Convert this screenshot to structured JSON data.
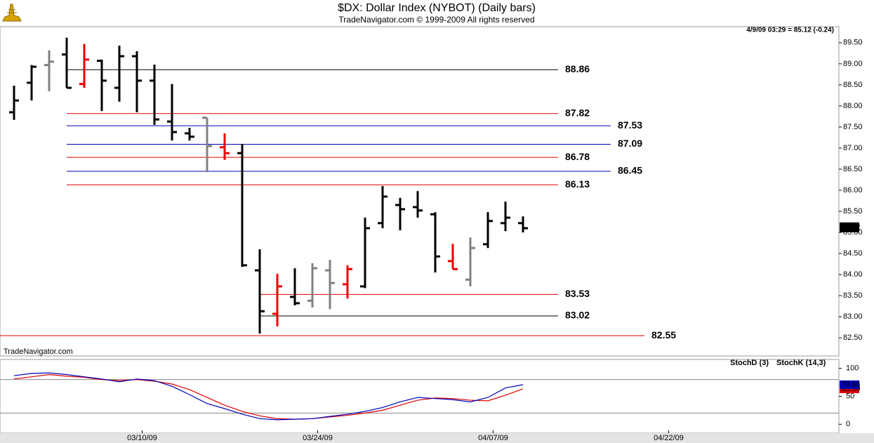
{
  "chart_data": [
    {
      "type": "ohlc",
      "title": "$DX:  Dollar Index (NYBOT)  (Daily bars)",
      "subtitle": "TradeNavigator.com © 1999-2009 All rights reserved",
      "status": "4/9/09 03:29 = 85.12 (-0.24)",
      "watermark": "TradeNavigator.com",
      "last": 85.12,
      "xlim": [
        -0.8,
        47
      ],
      "ylim": [
        82.07,
        89.88
      ],
      "yticks": [
        {
          "value": 82.5,
          "label": "82.50"
        },
        {
          "value": 83,
          "label": "83.00"
        },
        {
          "value": 83.5,
          "label": "83.50"
        },
        {
          "value": 84,
          "label": "84.00"
        },
        {
          "value": 84.5,
          "label": "84.50"
        },
        {
          "value": 85,
          "label": "85.00"
        },
        {
          "value": 85.5,
          "label": "85.50"
        },
        {
          "value": 86,
          "label": "86.00"
        },
        {
          "value": 86.5,
          "label": "86.50"
        },
        {
          "value": 87,
          "label": "87.00"
        },
        {
          "value": 87.5,
          "label": "87.50"
        },
        {
          "value": 88,
          "label": "88.00"
        },
        {
          "value": 88.5,
          "label": "88.50"
        },
        {
          "value": 89,
          "label": "89.00"
        },
        {
          "value": 89.5,
          "label": "89.50"
        }
      ],
      "open": [
        87.85,
        88.55,
        88.97,
        89.22,
        88.52,
        89.07,
        88.43,
        89.18,
        88.6,
        87.63,
        87.35,
        87.72,
        87.02,
        86.88,
        84.1,
        83.07,
        83.47,
        83.38,
        84.1,
        83.77,
        83.72,
        85.22,
        85.65,
        85.6,
        85.43,
        84.32,
        83.88,
        84.72,
        85.22,
        85.22
      ],
      "high": [
        88.48,
        88.97,
        89.32,
        89.62,
        89.47,
        89.1,
        89.43,
        89.3,
        88.98,
        88.52,
        87.48,
        87.72,
        87.35,
        87.1,
        84.6,
        84.02,
        84.15,
        84.27,
        84.35,
        84.22,
        85.35,
        86.1,
        85.82,
        85.98,
        85.48,
        84.73,
        84.88,
        85.48,
        85.73,
        85.38
      ],
      "low": [
        87.67,
        88.13,
        88.35,
        88.43,
        88.43,
        87.88,
        88.1,
        87.85,
        87.55,
        87.18,
        87.18,
        86.43,
        86.72,
        84.18,
        82.6,
        82.77,
        83.27,
        83.22,
        83.18,
        83.43,
        83.68,
        85.1,
        85.05,
        85.35,
        84.05,
        84.13,
        83.72,
        84.63,
        85.03,
        85.0
      ],
      "close": [
        88.13,
        88.93,
        89.05,
        88.43,
        89.1,
        88.6,
        89.18,
        88.6,
        87.68,
        87.38,
        87.27,
        87.05,
        86.88,
        84.22,
        83.13,
        83.72,
        83.32,
        84.15,
        83.8,
        84.13,
        85.1,
        85.85,
        85.55,
        85.52,
        84.43,
        84.13,
        84.63,
        85.27,
        85.35,
        85.1
      ],
      "colors": [
        "#000000",
        "#000000",
        "#808080",
        "#000000",
        "#ee0000",
        "#000000",
        "#000000",
        "#000000",
        "#000000",
        "#000000",
        "#000000",
        "#808080",
        "#ee0000",
        "#000000",
        "#000000",
        "#ee0000",
        "#000000",
        "#808080",
        "#808080",
        "#ee0000",
        "#000000",
        "#000000",
        "#000000",
        "#000000",
        "#000000",
        "#ee0000",
        "#808080",
        "#000000",
        "#000000",
        "#000000"
      ],
      "levels": [
        {
          "value": 88.86,
          "color": "#000000",
          "from": 3
        },
        {
          "value": 87.82,
          "color": "#dd0000",
          "from": 3
        },
        {
          "value": 87.53,
          "color": "#0000bb",
          "from": 3
        },
        {
          "value": 87.09,
          "color": "#0000bb",
          "from": 3
        },
        {
          "value": 86.78,
          "color": "#dd0000",
          "from": 3
        },
        {
          "value": 86.45,
          "color": "#0000bb",
          "from": 3
        },
        {
          "value": 86.13,
          "color": "#dd0000",
          "from": 3
        },
        {
          "value": 83.53,
          "color": "#dd0000",
          "from": 14
        },
        {
          "value": 83.02,
          "color": "#000000",
          "from": 14
        },
        {
          "value": 82.55,
          "color": "#dd0000",
          "from": null
        }
      ]
    },
    {
      "type": "line",
      "xlim": [
        -0.8,
        47
      ],
      "ylim": [
        -16,
        116
      ],
      "yticks": [
        0,
        50,
        100
      ],
      "levels": [
        80,
        20
      ],
      "xticks": [
        {
          "value": 7.3,
          "label": "03/10/09"
        },
        {
          "value": 17.3,
          "label": "03/24/09"
        },
        {
          "value": 27.3,
          "label": "04/07/09"
        },
        {
          "value": 37.3,
          "label": "04/22/09"
        }
      ],
      "series": [
        {
          "name": "StochD (3)",
          "color": "#dd0000",
          "last_label": "63.30",
          "values": [
            81,
            85,
            89,
            86,
            84,
            80,
            78,
            80,
            77,
            72,
            62,
            48,
            34,
            23,
            15,
            10,
            9,
            10,
            13,
            16,
            20,
            25,
            34,
            43,
            47,
            46,
            43,
            42,
            52,
            63.3
          ]
        },
        {
          "name": "StochK (14,3)",
          "color": "#0000bb",
          "last_label": "70.88",
          "values": [
            87,
            91,
            92,
            89,
            85,
            81,
            76,
            81,
            78,
            68,
            53,
            37,
            28,
            18,
            10,
            8,
            9,
            10,
            14,
            18,
            23,
            30,
            40,
            48,
            46,
            44,
            40,
            48,
            65,
            70.88
          ]
        }
      ]
    }
  ]
}
